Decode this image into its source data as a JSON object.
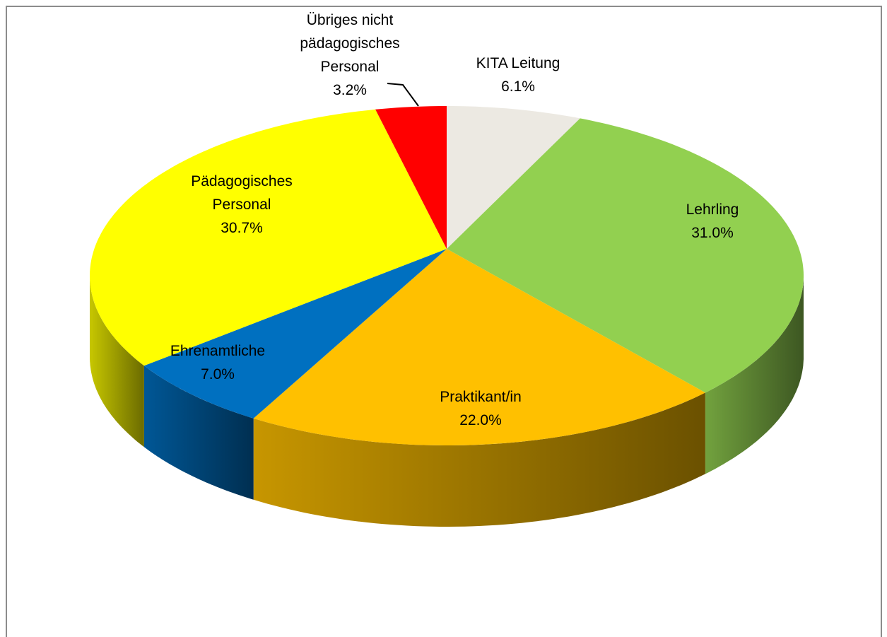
{
  "chart_data": {
    "type": "pie",
    "categories": [
      "KITA Leitung",
      "Lehrling",
      "Praktikant/in",
      "Ehrenamtliche",
      "Pädagogisches Personal",
      "Übriges nicht pädagogisches Personal"
    ],
    "values": [
      6.1,
      31.0,
      22.0,
      7.0,
      30.7,
      3.2
    ],
    "value_labels": [
      "6.1%",
      "31.0%",
      "22.0%",
      "7.0%",
      "30.7%",
      "3.2%"
    ],
    "colors": [
      "#ece9e2",
      "#92d050",
      "#ffc000",
      "#0070c0",
      "#ffff00",
      "#ff0000"
    ]
  }
}
